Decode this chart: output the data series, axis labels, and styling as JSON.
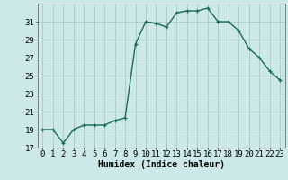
{
  "x": [
    0,
    1,
    2,
    3,
    4,
    5,
    6,
    7,
    8,
    9,
    10,
    11,
    12,
    13,
    14,
    15,
    16,
    17,
    18,
    19,
    20,
    21,
    22,
    23
  ],
  "y": [
    19,
    19,
    17.5,
    19,
    19.5,
    19.5,
    19.5,
    20,
    20.3,
    28.5,
    31,
    30.8,
    30.4,
    32,
    32.2,
    32.2,
    32.5,
    31,
    31,
    30,
    28,
    27,
    25.5,
    24.5
  ],
  "xlabel": "Humidex (Indice chaleur)",
  "ylabel": "",
  "ylim": [
    17,
    33
  ],
  "xlim": [
    -0.5,
    23.5
  ],
  "yticks": [
    17,
    19,
    21,
    23,
    25,
    27,
    29,
    31
  ],
  "xticks": [
    0,
    1,
    2,
    3,
    4,
    5,
    6,
    7,
    8,
    9,
    10,
    11,
    12,
    13,
    14,
    15,
    16,
    17,
    18,
    19,
    20,
    21,
    22,
    23
  ],
  "line_color": "#1a6b5a",
  "marker": "+",
  "marker_color": "#1a6b5a",
  "bg_color": "#cce8e8",
  "grid_color": "#aac8c8",
  "label_fontsize": 7,
  "tick_fontsize": 6.5
}
